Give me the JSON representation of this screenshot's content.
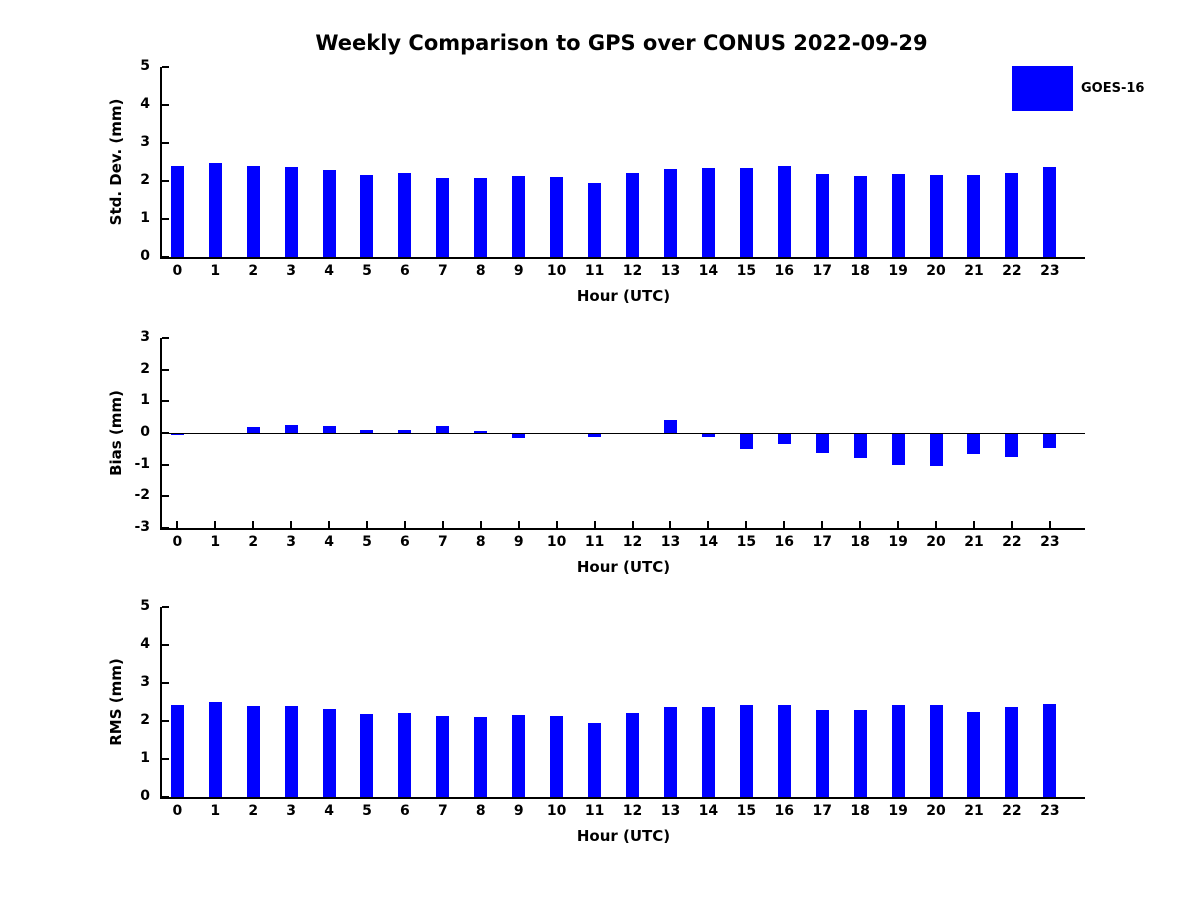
{
  "figure": {
    "title": "Weekly Comparison to GPS over CONUS 2022-09-29",
    "legend": {
      "label": "GOES-16",
      "swatch_color": "#0000ff"
    },
    "background_color": "#ffffff",
    "text_color": "#000000"
  },
  "chart_data": [
    {
      "type": "bar",
      "panel": "std_dev",
      "ylabel": "Std. Dev. (mm)",
      "xlabel": "Hour (UTC)",
      "categories": [
        0,
        1,
        2,
        3,
        4,
        5,
        6,
        7,
        8,
        9,
        10,
        11,
        12,
        13,
        14,
        15,
        16,
        17,
        18,
        19,
        20,
        21,
        22,
        23
      ],
      "series": [
        {
          "name": "GOES-16",
          "color": "#0000ff",
          "values": [
            2.4,
            2.48,
            2.4,
            2.37,
            2.3,
            2.17,
            2.22,
            2.09,
            2.09,
            2.14,
            2.11,
            1.94,
            2.22,
            2.31,
            2.34,
            2.33,
            2.39,
            2.19,
            2.13,
            2.18,
            2.16,
            2.16,
            2.21,
            2.38
          ]
        }
      ],
      "ylim": [
        0,
        5
      ],
      "yticks": [
        0,
        1,
        2,
        3,
        4,
        5
      ],
      "grid": false,
      "zero_line": false,
      "legend_position": "upper-right-outside"
    },
    {
      "type": "bar",
      "panel": "bias",
      "ylabel": "Bias (mm)",
      "xlabel": "Hour (UTC)",
      "categories": [
        0,
        1,
        2,
        3,
        4,
        5,
        6,
        7,
        8,
        9,
        10,
        11,
        12,
        13,
        14,
        15,
        16,
        17,
        18,
        19,
        20,
        21,
        22,
        23
      ],
      "series": [
        {
          "name": "GOES-16",
          "color": "#0000ff",
          "values": [
            -0.05,
            0.01,
            0.19,
            0.24,
            0.21,
            0.1,
            0.11,
            0.22,
            0.05,
            -0.15,
            -0.03,
            -0.13,
            -0.03,
            0.4,
            -0.12,
            -0.52,
            -0.35,
            -0.62,
            -0.8,
            -1.02,
            -1.05,
            -0.67,
            -0.77,
            -0.48
          ]
        }
      ],
      "ylim": [
        -3,
        3
      ],
      "yticks": [
        3,
        2,
        1,
        0,
        -1,
        -2,
        -3
      ],
      "grid": false,
      "zero_line": true,
      "legend_position": "none"
    },
    {
      "type": "bar",
      "panel": "rms",
      "ylabel": "RMS (mm)",
      "xlabel": "Hour (UTC)",
      "categories": [
        0,
        1,
        2,
        3,
        4,
        5,
        6,
        7,
        8,
        9,
        10,
        11,
        12,
        13,
        14,
        15,
        16,
        17,
        18,
        19,
        20,
        21,
        22,
        23
      ],
      "series": [
        {
          "name": "GOES-16",
          "color": "#0000ff",
          "values": [
            2.42,
            2.49,
            2.4,
            2.39,
            2.32,
            2.18,
            2.22,
            2.12,
            2.1,
            2.15,
            2.12,
            1.96,
            2.22,
            2.36,
            2.36,
            2.41,
            2.41,
            2.29,
            2.28,
            2.41,
            2.41,
            2.25,
            2.36,
            2.45
          ]
        }
      ],
      "ylim": [
        0,
        5
      ],
      "yticks": [
        0,
        1,
        2,
        3,
        4,
        5
      ],
      "grid": false,
      "zero_line": false,
      "legend_position": "none"
    }
  ]
}
